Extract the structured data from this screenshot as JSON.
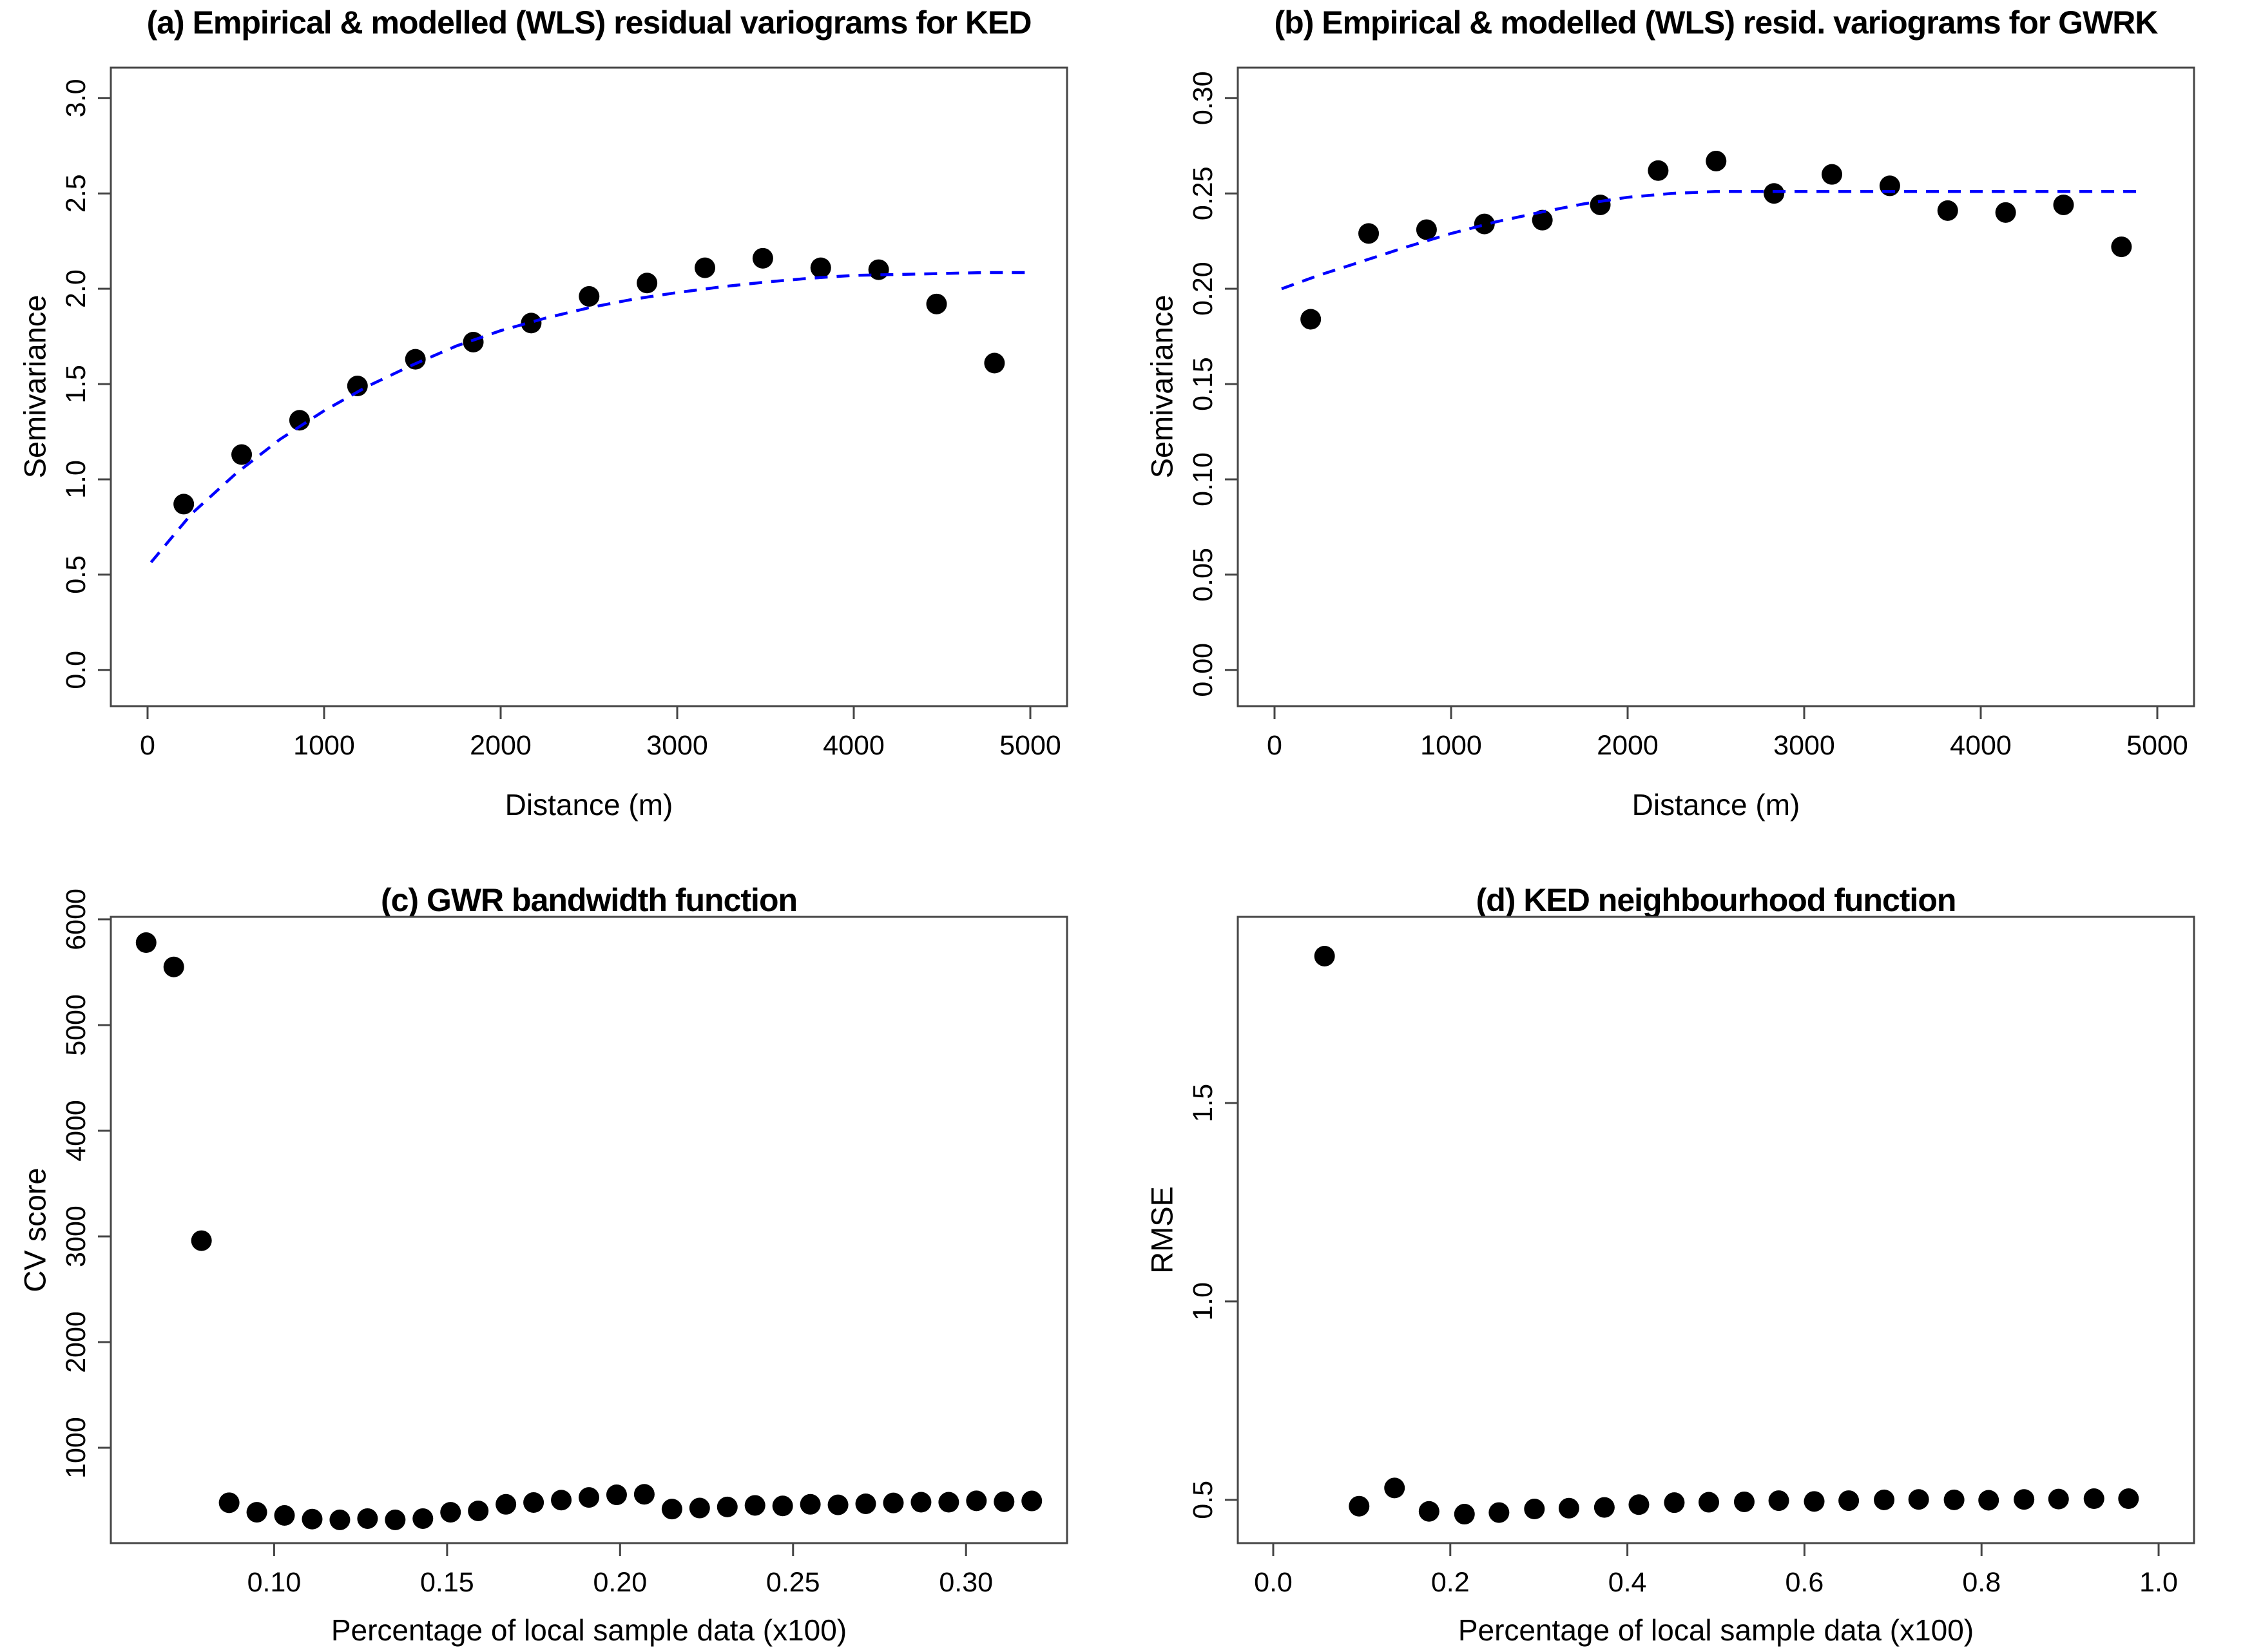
{
  "figure": {
    "background": "#ffffff",
    "axis_color": "#454545",
    "text_color": "#000000",
    "point_color": "#000000",
    "model_line_color": "#0000ff"
  },
  "chart_data": [
    {
      "id": "a",
      "type": "scatter",
      "title": "(a) Empirical & modelled (WLS) residual variograms for KED",
      "xlabel": "Distance (m)",
      "ylabel": "Semivariance",
      "grid": false,
      "legend": null,
      "xlim": [
        -208,
        5208
      ],
      "ylim": [
        -0.19,
        3.16
      ],
      "xticks": {
        "values": [
          0,
          1000,
          2000,
          3000,
          4000,
          5000
        ],
        "labels": [
          "0",
          "1000",
          "2000",
          "3000",
          "4000",
          "5000"
        ]
      },
      "yticks": {
        "values": [
          0.0,
          0.5,
          1.0,
          1.5,
          2.0,
          2.5,
          3.0
        ],
        "labels": [
          "0.0",
          "0.5",
          "1.0",
          "1.5",
          "2.0",
          "2.5",
          "3.0"
        ]
      },
      "points": [
        [
          205,
          0.87
        ],
        [
          533,
          1.13
        ],
        [
          861,
          1.31
        ],
        [
          1189,
          1.49
        ],
        [
          1517,
          1.63
        ],
        [
          1845,
          1.72
        ],
        [
          2173,
          1.82
        ],
        [
          2501,
          1.96
        ],
        [
          2829,
          2.03
        ],
        [
          3157,
          2.11
        ],
        [
          3485,
          2.16
        ],
        [
          3813,
          2.11
        ],
        [
          4141,
          2.1
        ],
        [
          4469,
          1.92
        ],
        [
          4797,
          1.61
        ]
      ],
      "model_line": {
        "style": "dashed",
        "color": "#0000ff",
        "points": [
          [
            20,
            0.565
          ],
          [
            250,
            0.82
          ],
          [
            500,
            1.03
          ],
          [
            750,
            1.21
          ],
          [
            1000,
            1.36
          ],
          [
            1250,
            1.49
          ],
          [
            1500,
            1.6
          ],
          [
            1750,
            1.7
          ],
          [
            2000,
            1.78
          ],
          [
            2250,
            1.845
          ],
          [
            2500,
            1.9
          ],
          [
            2750,
            1.945
          ],
          [
            3000,
            1.98
          ],
          [
            3250,
            2.01
          ],
          [
            3500,
            2.035
          ],
          [
            3750,
            2.055
          ],
          [
            4000,
            2.07
          ],
          [
            4250,
            2.075
          ],
          [
            4500,
            2.08
          ],
          [
            4750,
            2.085
          ],
          [
            5000,
            2.085
          ]
        ]
      }
    },
    {
      "id": "b",
      "type": "scatter",
      "title": "(b) Empirical & modelled (WLS) resid. variograms for GWRK",
      "xlabel": "Distance (m)",
      "ylabel": "Semivariance",
      "grid": false,
      "legend": null,
      "xlim": [
        -208,
        5208
      ],
      "ylim": [
        -0.019,
        0.316
      ],
      "xticks": {
        "values": [
          0,
          1000,
          2000,
          3000,
          4000,
          5000
        ],
        "labels": [
          "0",
          "1000",
          "2000",
          "3000",
          "4000",
          "5000"
        ]
      },
      "yticks": {
        "values": [
          0.0,
          0.05,
          0.1,
          0.15,
          0.2,
          0.25,
          0.3
        ],
        "labels": [
          "0.00",
          "0.05",
          "0.10",
          "0.15",
          "0.20",
          "0.25",
          "0.30"
        ]
      },
      "points": [
        [
          205,
          0.184
        ],
        [
          533,
          0.229
        ],
        [
          861,
          0.231
        ],
        [
          1189,
          0.234
        ],
        [
          1517,
          0.236
        ],
        [
          1845,
          0.244
        ],
        [
          2173,
          0.262
        ],
        [
          2501,
          0.267
        ],
        [
          2829,
          0.25
        ],
        [
          3157,
          0.26
        ],
        [
          3485,
          0.254
        ],
        [
          3813,
          0.241
        ],
        [
          4141,
          0.24
        ],
        [
          4469,
          0.244
        ],
        [
          4797,
          0.222
        ]
      ],
      "model_line": {
        "style": "dashed",
        "color": "#0000ff",
        "points": [
          [
            40,
            0.2
          ],
          [
            250,
            0.207
          ],
          [
            500,
            0.2145
          ],
          [
            750,
            0.222
          ],
          [
            1000,
            0.229
          ],
          [
            1250,
            0.235
          ],
          [
            1500,
            0.24
          ],
          [
            1750,
            0.2445
          ],
          [
            2000,
            0.248
          ],
          [
            2250,
            0.25
          ],
          [
            2500,
            0.251
          ],
          [
            3000,
            0.251
          ],
          [
            3500,
            0.251
          ],
          [
            4000,
            0.251
          ],
          [
            4500,
            0.251
          ],
          [
            4920,
            0.251
          ]
        ]
      }
    },
    {
      "id": "c",
      "type": "scatter",
      "title": "(c) GWR bandwidth function",
      "xlabel": "Percentage of local sample data (x100)",
      "ylabel": "CV score",
      "grid": false,
      "legend": null,
      "xlim": [
        0.0528,
        0.3292
      ],
      "ylim": [
        98,
        6024
      ],
      "xticks": {
        "values": [
          0.1,
          0.15,
          0.2,
          0.25,
          0.3
        ],
        "labels": [
          "0.10",
          "0.15",
          "0.20",
          "0.25",
          "0.30"
        ]
      },
      "yticks": {
        "values": [
          1000,
          2000,
          3000,
          4000,
          5000,
          6000
        ],
        "labels": [
          "1000",
          "2000",
          "3000",
          "4000",
          "5000",
          "6000"
        ]
      },
      "points": [
        [
          0.063,
          5780
        ],
        [
          0.071,
          5550
        ],
        [
          0.079,
          2960
        ],
        [
          0.087,
          480
        ],
        [
          0.095,
          390
        ],
        [
          0.103,
          360
        ],
        [
          0.111,
          325
        ],
        [
          0.119,
          318
        ],
        [
          0.127,
          330
        ],
        [
          0.135,
          318
        ],
        [
          0.143,
          330
        ],
        [
          0.151,
          390
        ],
        [
          0.159,
          403
        ],
        [
          0.167,
          465
        ],
        [
          0.175,
          482
        ],
        [
          0.183,
          505
        ],
        [
          0.191,
          530
        ],
        [
          0.199,
          555
        ],
        [
          0.207,
          560
        ],
        [
          0.215,
          420
        ],
        [
          0.223,
          430
        ],
        [
          0.231,
          440
        ],
        [
          0.239,
          455
        ],
        [
          0.247,
          450
        ],
        [
          0.255,
          465
        ],
        [
          0.263,
          460
        ],
        [
          0.271,
          470
        ],
        [
          0.279,
          478
        ],
        [
          0.287,
          485
        ],
        [
          0.295,
          485
        ],
        [
          0.303,
          498
        ],
        [
          0.311,
          490
        ],
        [
          0.319,
          497
        ]
      ],
      "model_line": null
    },
    {
      "id": "d",
      "type": "scatter",
      "title": "(d) KED neighbourhood function",
      "xlabel": "Percentage of local sample data (x100)",
      "ylabel": "RMSE",
      "grid": false,
      "legend": null,
      "xlim": [
        -0.04,
        1.04
      ],
      "ylim": [
        0.391,
        1.969
      ],
      "xticks": {
        "values": [
          0.0,
          0.2,
          0.4,
          0.6,
          0.8,
          1.0
        ],
        "labels": [
          "0.0",
          "0.2",
          "0.4",
          "0.6",
          "0.8",
          "1.0"
        ]
      },
      "yticks": {
        "values": [
          0.5,
          1.0,
          1.5
        ],
        "labels": [
          "0.5",
          "1.0",
          "1.5"
        ]
      },
      "points": [
        [
          0.058,
          1.87
        ],
        [
          0.097,
          0.484
        ],
        [
          0.137,
          0.53
        ],
        [
          0.176,
          0.471
        ],
        [
          0.216,
          0.464
        ],
        [
          0.255,
          0.468
        ],
        [
          0.295,
          0.477
        ],
        [
          0.334,
          0.479
        ],
        [
          0.374,
          0.481
        ],
        [
          0.413,
          0.488
        ],
        [
          0.453,
          0.493
        ],
        [
          0.492,
          0.494
        ],
        [
          0.532,
          0.495
        ],
        [
          0.571,
          0.498
        ],
        [
          0.611,
          0.496
        ],
        [
          0.65,
          0.498
        ],
        [
          0.69,
          0.5
        ],
        [
          0.729,
          0.501
        ],
        [
          0.769,
          0.5
        ],
        [
          0.808,
          0.499
        ],
        [
          0.848,
          0.501
        ],
        [
          0.887,
          0.502
        ],
        [
          0.927,
          0.503
        ],
        [
          0.966,
          0.503
        ]
      ],
      "model_line": null
    }
  ]
}
